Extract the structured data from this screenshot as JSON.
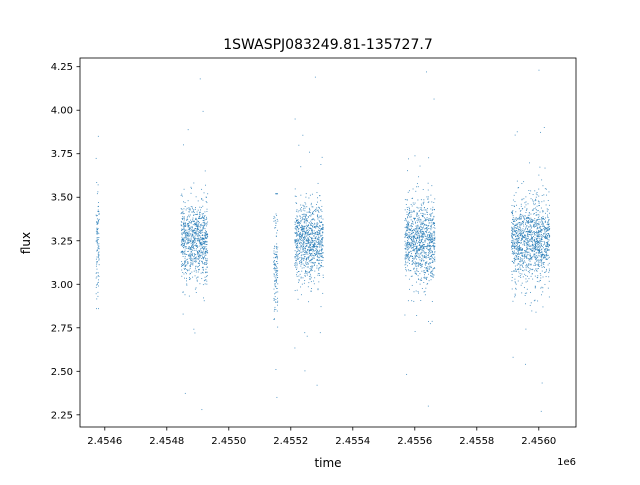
{
  "chart_data": {
    "type": "scatter",
    "title": "1SWASPJ083249.81-135727.7",
    "xlabel": "time",
    "ylabel": "flux",
    "x_offset_label": "1e6",
    "xlim": [
      2.45452,
      2.45612
    ],
    "ylim": [
      2.18,
      4.3
    ],
    "grid": false,
    "marker_color": "#1f77b4",
    "x_ticks": [
      {
        "value": 2.4546,
        "label": "2.4546"
      },
      {
        "value": 2.4548,
        "label": "2.4548"
      },
      {
        "value": 2.455,
        "label": "2.4550"
      },
      {
        "value": 2.4552,
        "label": "2.4552"
      },
      {
        "value": 2.4554,
        "label": "2.4554"
      },
      {
        "value": 2.4556,
        "label": "2.4556"
      },
      {
        "value": 2.4558,
        "label": "2.4558"
      },
      {
        "value": 2.456,
        "label": "2.4560"
      }
    ],
    "y_ticks": [
      {
        "value": 2.25,
        "label": "2.25"
      },
      {
        "value": 2.5,
        "label": "2.50"
      },
      {
        "value": 2.75,
        "label": "2.75"
      },
      {
        "value": 3.0,
        "label": "3.00"
      },
      {
        "value": 3.25,
        "label": "3.25"
      },
      {
        "value": 3.5,
        "label": "3.50"
      },
      {
        "value": 3.75,
        "label": "3.75"
      },
      {
        "value": 4.0,
        "label": "4.00"
      },
      {
        "value": 4.25,
        "label": "4.25"
      }
    ],
    "clusters": [
      {
        "x_range": [
          2.454572,
          2.454582
        ],
        "median": 3.25,
        "spread": 0.3,
        "tail_max": 3.85,
        "tail_min": 2.86
      },
      {
        "x_range": [
          2.454846,
          2.454932
        ],
        "median": 3.25,
        "spread": 0.22,
        "tail_max": 4.18,
        "tail_min": 2.28
      },
      {
        "x_range": [
          2.455145,
          2.455158
        ],
        "median": 3.1,
        "spread": 0.3,
        "tail_max": 3.52,
        "tail_min": 2.35
      },
      {
        "x_range": [
          2.455213,
          2.455305
        ],
        "median": 3.25,
        "spread": 0.22,
        "tail_max": 4.19,
        "tail_min": 2.42
      },
      {
        "x_range": [
          2.455568,
          2.455665
        ],
        "median": 3.25,
        "spread": 0.23,
        "tail_max": 4.22,
        "tail_min": 2.3
      },
      {
        "x_range": [
          2.455912,
          2.456035
        ],
        "median": 3.25,
        "spread": 0.23,
        "tail_max": 4.23,
        "tail_min": 2.27
      }
    ]
  }
}
